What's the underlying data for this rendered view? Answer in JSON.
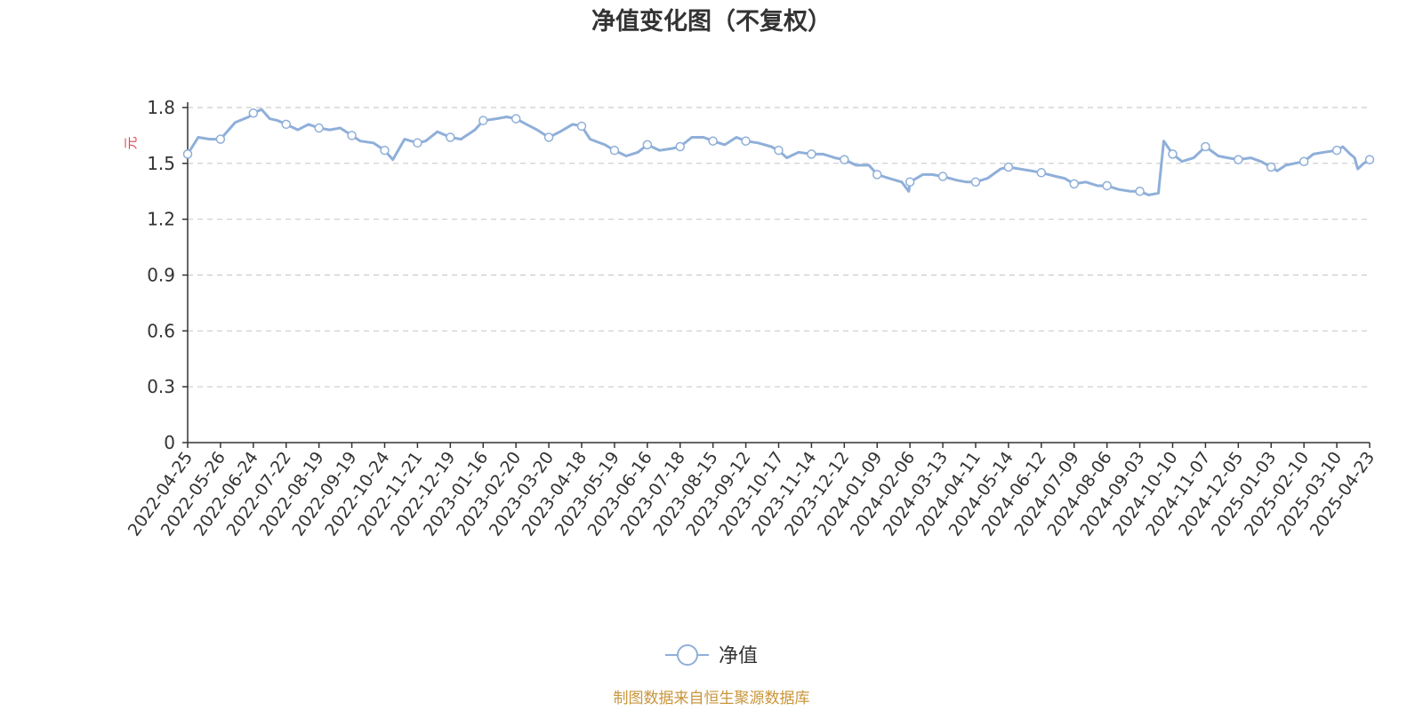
{
  "chart_data": {
    "type": "line",
    "title": "净值变化图（不复权）",
    "ylabel": "元",
    "ylim": [
      0,
      1.8
    ],
    "yticks": [
      "0",
      "0.3",
      "0.6",
      "0.9",
      "1.2",
      "1.5",
      "1.8"
    ],
    "grid": "horizontal-dashed",
    "legend_position": "bottom-center",
    "x_tick_labels": [
      "2022-04-25",
      "2022-05-26",
      "2022-06-24",
      "2022-07-22",
      "2022-08-19",
      "2022-09-19",
      "2022-10-24",
      "2022-11-21",
      "2022-12-19",
      "2023-01-16",
      "2023-02-20",
      "2023-03-20",
      "2023-04-18",
      "2023-05-19",
      "2023-06-16",
      "2023-07-18",
      "2023-08-15",
      "2023-09-12",
      "2023-10-17",
      "2023-11-14",
      "2023-12-12",
      "2024-01-09",
      "2024-02-06",
      "2024-03-13",
      "2024-04-11",
      "2024-05-14",
      "2024-06-12",
      "2024-07-09",
      "2024-08-06",
      "2024-09-03",
      "2024-10-10",
      "2024-11-07",
      "2024-12-05",
      "2025-01-03",
      "2025-02-10",
      "2025-03-10",
      "2025-04-23"
    ],
    "series": [
      {
        "name": "净值",
        "color": "#8fafd9",
        "points": [
          [
            "2022-04-25",
            1.55
          ],
          [
            "2022-05-05",
            1.64
          ],
          [
            "2022-05-16",
            1.63
          ],
          [
            "2022-05-26",
            1.63
          ],
          [
            "2022-06-08",
            1.72
          ],
          [
            "2022-06-20",
            1.75
          ],
          [
            "2022-06-24",
            1.77
          ],
          [
            "2022-07-01",
            1.79
          ],
          [
            "2022-07-08",
            1.74
          ],
          [
            "2022-07-15",
            1.73
          ],
          [
            "2022-07-22",
            1.71
          ],
          [
            "2022-08-01",
            1.68
          ],
          [
            "2022-08-10",
            1.71
          ],
          [
            "2022-08-19",
            1.69
          ],
          [
            "2022-08-29",
            1.68
          ],
          [
            "2022-09-08",
            1.69
          ],
          [
            "2022-09-19",
            1.65
          ],
          [
            "2022-09-28",
            1.62
          ],
          [
            "2022-10-12",
            1.61
          ],
          [
            "2022-10-24",
            1.57
          ],
          [
            "2022-10-31",
            1.52
          ],
          [
            "2022-11-10",
            1.63
          ],
          [
            "2022-11-21",
            1.61
          ],
          [
            "2022-11-28",
            1.62
          ],
          [
            "2022-12-08",
            1.67
          ],
          [
            "2022-12-19",
            1.64
          ],
          [
            "2022-12-28",
            1.63
          ],
          [
            "2023-01-09",
            1.68
          ],
          [
            "2023-01-16",
            1.73
          ],
          [
            "2023-01-30",
            1.74
          ],
          [
            "2023-02-10",
            1.75
          ],
          [
            "2023-02-20",
            1.74
          ],
          [
            "2023-03-01",
            1.71
          ],
          [
            "2023-03-10",
            1.68
          ],
          [
            "2023-03-20",
            1.64
          ],
          [
            "2023-03-30",
            1.67
          ],
          [
            "2023-04-10",
            1.71
          ],
          [
            "2023-04-18",
            1.7
          ],
          [
            "2023-04-26",
            1.63
          ],
          [
            "2023-05-10",
            1.6
          ],
          [
            "2023-05-19",
            1.57
          ],
          [
            "2023-05-29",
            1.54
          ],
          [
            "2023-06-08",
            1.56
          ],
          [
            "2023-06-16",
            1.6
          ],
          [
            "2023-06-28",
            1.57
          ],
          [
            "2023-07-10",
            1.58
          ],
          [
            "2023-07-18",
            1.59
          ],
          [
            "2023-07-28",
            1.64
          ],
          [
            "2023-08-07",
            1.64
          ],
          [
            "2023-08-15",
            1.62
          ],
          [
            "2023-08-25",
            1.6
          ],
          [
            "2023-09-04",
            1.64
          ],
          [
            "2023-09-12",
            1.62
          ],
          [
            "2023-09-25",
            1.61
          ],
          [
            "2023-10-09",
            1.59
          ],
          [
            "2023-10-17",
            1.57
          ],
          [
            "2023-10-24",
            1.53
          ],
          [
            "2023-11-03",
            1.56
          ],
          [
            "2023-11-14",
            1.55
          ],
          [
            "2023-11-24",
            1.55
          ],
          [
            "2023-12-04",
            1.53
          ],
          [
            "2023-12-12",
            1.52
          ],
          [
            "2023-12-22",
            1.49
          ],
          [
            "2024-01-02",
            1.49
          ],
          [
            "2024-01-09",
            1.44
          ],
          [
            "2024-01-19",
            1.42
          ],
          [
            "2024-01-30",
            1.4
          ],
          [
            "2024-02-05",
            1.35
          ],
          [
            "2024-02-06",
            1.4
          ],
          [
            "2024-02-20",
            1.44
          ],
          [
            "2024-03-01",
            1.44
          ],
          [
            "2024-03-13",
            1.43
          ],
          [
            "2024-03-25",
            1.41
          ],
          [
            "2024-04-03",
            1.4
          ],
          [
            "2024-04-11",
            1.4
          ],
          [
            "2024-04-23",
            1.42
          ],
          [
            "2024-05-06",
            1.47
          ],
          [
            "2024-05-14",
            1.48
          ],
          [
            "2024-05-24",
            1.47
          ],
          [
            "2024-06-03",
            1.46
          ],
          [
            "2024-06-12",
            1.45
          ],
          [
            "2024-06-24",
            1.43
          ],
          [
            "2024-07-01",
            1.42
          ],
          [
            "2024-07-09",
            1.39
          ],
          [
            "2024-07-19",
            1.4
          ],
          [
            "2024-07-29",
            1.38
          ],
          [
            "2024-08-06",
            1.38
          ],
          [
            "2024-08-16",
            1.36
          ],
          [
            "2024-08-26",
            1.35
          ],
          [
            "2024-09-03",
            1.35
          ],
          [
            "2024-09-13",
            1.33
          ],
          [
            "2024-09-24",
            1.34
          ],
          [
            "2024-09-30",
            1.62
          ],
          [
            "2024-10-10",
            1.55
          ],
          [
            "2024-10-18",
            1.51
          ],
          [
            "2024-10-28",
            1.53
          ],
          [
            "2024-11-07",
            1.59
          ],
          [
            "2024-11-18",
            1.54
          ],
          [
            "2024-11-26",
            1.53
          ],
          [
            "2024-12-05",
            1.52
          ],
          [
            "2024-12-16",
            1.53
          ],
          [
            "2024-12-25",
            1.51
          ],
          [
            "2025-01-03",
            1.48
          ],
          [
            "2025-01-10",
            1.46
          ],
          [
            "2025-01-20",
            1.49
          ],
          [
            "2025-02-10",
            1.51
          ],
          [
            "2025-02-18",
            1.55
          ],
          [
            "2025-02-27",
            1.56
          ],
          [
            "2025-03-10",
            1.57
          ],
          [
            "2025-03-18",
            1.59
          ],
          [
            "2025-03-28",
            1.55
          ],
          [
            "2025-04-03",
            1.53
          ],
          [
            "2025-04-07",
            1.47
          ],
          [
            "2025-04-15",
            1.5
          ],
          [
            "2025-04-23",
            1.52
          ]
        ]
      }
    ]
  },
  "legend": {
    "label": "净值"
  },
  "footer": {
    "source": "制图数据来自恒生聚源数据库"
  },
  "colors": {
    "line": "#8fafd9",
    "axis": "#333333",
    "grid": "#cccccc",
    "unit": "#e0454d",
    "source": "#c9953a",
    "title": "#333333"
  }
}
